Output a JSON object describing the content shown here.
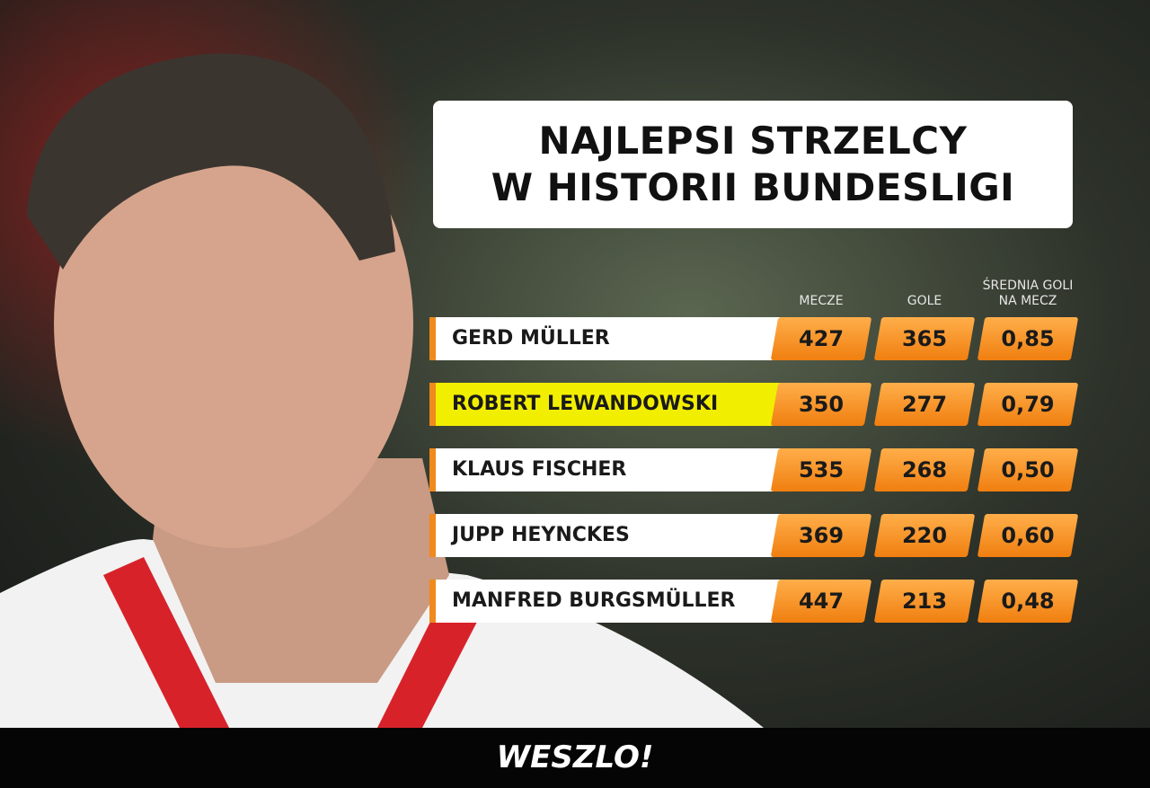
{
  "header": {
    "title": [
      "NAJLEPSI STRZELCY",
      "W HISTORII BUNDESLIGI"
    ]
  },
  "table": {
    "columns": [
      [
        "MECZE"
      ],
      [
        "GOLE"
      ],
      [
        "ŚREDNIA GOLI",
        "NA MECZ"
      ]
    ],
    "highlight_row": 1,
    "rows": [
      {
        "name": "GERD MÜLLER",
        "cells": [
          427,
          365,
          "0,85"
        ]
      },
      {
        "name": "ROBERT LEWANDOWSKI",
        "cells": [
          350,
          277,
          "0,79"
        ]
      },
      {
        "name": "KLAUS FISCHER",
        "cells": [
          535,
          268,
          "0,50"
        ]
      },
      {
        "name": "JUPP HEYNCKES",
        "cells": [
          369,
          220,
          "0,60"
        ]
      },
      {
        "name": "MANFRED BURGSMÜLLER",
        "cells": [
          447,
          213,
          "0,48"
        ]
      }
    ]
  },
  "footer": {
    "brand": "WESZLO!"
  }
}
